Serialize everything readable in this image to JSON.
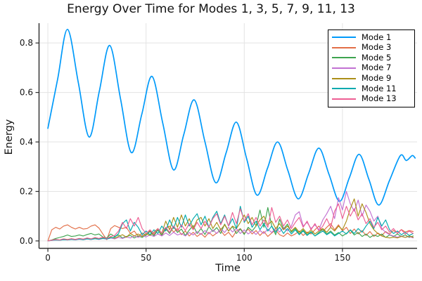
{
  "chart_data": {
    "type": "line",
    "title": "Energy Over Time for Modes 1, 3, 5, 7, 9, 11, 13",
    "xlabel": "Time",
    "ylabel": "Energy",
    "xlim": [
      -4.5,
      188
    ],
    "ylim": [
      -0.03,
      0.88
    ],
    "xticks": {
      "values": [
        0,
        50,
        100,
        150
      ],
      "labels": [
        "0",
        "50",
        "100",
        "150"
      ]
    },
    "yticks": {
      "values": [
        0.0,
        0.2,
        0.4,
        0.6,
        0.8
      ],
      "labels": [
        "0.0",
        "0.2",
        "0.4",
        "0.6",
        "0.8"
      ]
    },
    "grid": true,
    "legend_position": "top-right",
    "colors": {
      "grid": "#e3e3e3",
      "axis": "#2c2c2c",
      "text": "#131313",
      "legend_border": "#000000",
      "background": "#ffffff"
    },
    "series": [
      {
        "name": "Mode 1",
        "color": "#009AFA",
        "smooth": true,
        "width": 1.7,
        "points": [
          [
            0,
            0.455
          ],
          [
            5,
            0.655
          ],
          [
            10,
            0.855
          ],
          [
            15.5,
            0.64
          ],
          [
            21,
            0.42
          ],
          [
            26.2,
            0.605
          ],
          [
            31.5,
            0.79
          ],
          [
            37,
            0.574
          ],
          [
            42.5,
            0.357
          ],
          [
            47.8,
            0.511
          ],
          [
            53,
            0.665
          ],
          [
            58.5,
            0.476
          ],
          [
            64,
            0.287
          ],
          [
            69.2,
            0.43
          ],
          [
            74.5,
            0.57
          ],
          [
            80,
            0.4
          ],
          [
            85.5,
            0.235
          ],
          [
            90.8,
            0.357
          ],
          [
            96,
            0.48
          ],
          [
            101.2,
            0.333
          ],
          [
            106.5,
            0.185
          ],
          [
            111.8,
            0.293
          ],
          [
            117,
            0.4
          ],
          [
            122.2,
            0.285
          ],
          [
            127.5,
            0.17
          ],
          [
            132.8,
            0.273
          ],
          [
            138,
            0.375
          ],
          [
            143.2,
            0.268
          ],
          [
            148.5,
            0.16
          ],
          [
            153.5,
            0.255
          ],
          [
            158.5,
            0.35
          ],
          [
            163.5,
            0.248
          ],
          [
            168.5,
            0.145
          ],
          [
            174,
            0.245
          ],
          [
            179.5,
            0.345
          ],
          [
            182.5,
            0.325
          ],
          [
            185.5,
            0.345
          ],
          [
            187,
            0.335
          ]
        ]
      },
      {
        "name": "Mode 3",
        "color": "#E26E47",
        "smooth": false,
        "width": 1.15,
        "t_start": 0,
        "t_step": 2,
        "values": [
          0,
          0.045,
          0.055,
          0.048,
          0.06,
          0.065,
          0.055,
          0.048,
          0.055,
          0.048,
          0.05,
          0.06,
          0.065,
          0.052,
          0.028,
          0.005,
          0.05,
          0.062,
          0.055,
          0.05,
          0.055,
          0.03,
          0.04,
          0.018,
          0.032,
          0.022,
          0.042,
          0.025,
          0.045,
          0.02,
          0.05,
          0.06,
          0.035,
          0.05,
          0.025,
          0.04,
          0.02,
          0.035,
          0.018,
          0.03,
          0.015,
          0.035,
          0.02,
          0.032,
          0.042,
          0.022,
          0.035,
          0.015,
          0.04,
          0.05,
          0.03,
          0.048,
          0.028,
          0.042,
          0.022,
          0.038,
          0.018,
          0.032,
          0.045,
          0.025,
          0.018,
          0.032,
          0.02,
          0.028,
          0.04,
          0.022,
          0.036,
          0.028,
          0.045,
          0.06,
          0.038,
          0.055,
          0.07,
          0.045,
          0.065,
          0.04,
          0.055,
          0.03,
          0.048,
          0.028,
          0.042,
          0.022,
          0.038,
          0.018,
          0.032,
          0.022,
          0.038,
          0.028,
          0.042,
          0.032,
          0.046,
          0.036,
          0.042,
          0.038
        ]
      },
      {
        "name": "Mode 5",
        "color": "#3DA44E",
        "smooth": false,
        "width": 1.15,
        "t_start": 0,
        "t_step": 2,
        "values": [
          0,
          0.004,
          0.01,
          0.014,
          0.018,
          0.024,
          0.018,
          0.02,
          0.024,
          0.02,
          0.026,
          0.03,
          0.024,
          0.028,
          0.016,
          0.012,
          0.028,
          0.018,
          0.024,
          0.012,
          0.018,
          0.022,
          0.012,
          0.02,
          0.014,
          0.024,
          0.038,
          0.02,
          0.044,
          0.024,
          0.05,
          0.03,
          0.058,
          0.034,
          0.048,
          0.022,
          0.044,
          0.062,
          0.03,
          0.05,
          0.026,
          0.058,
          0.038,
          0.054,
          0.03,
          0.068,
          0.04,
          0.058,
          0.03,
          0.048,
          0.026,
          0.055,
          0.04,
          0.06,
          0.125,
          0.055,
          0.135,
          0.06,
          0.025,
          0.088,
          0.048,
          0.068,
          0.035,
          0.05,
          0.028,
          0.044,
          0.024,
          0.038,
          0.02,
          0.034,
          0.048,
          0.028,
          0.04,
          0.024,
          0.034,
          0.02,
          0.03,
          0.044,
          0.024,
          0.034,
          0.018,
          0.028,
          0.014,
          0.024,
          0.018,
          0.028,
          0.014,
          0.024,
          0.018,
          0.028,
          0.018,
          0.024,
          0.014,
          0.02
        ]
      },
      {
        "name": "Mode 7",
        "color": "#C271D2",
        "smooth": false,
        "width": 1.15,
        "t_start": 0,
        "t_step": 2,
        "values": [
          0,
          0.002,
          0.004,
          0.003,
          0.005,
          0.004,
          0.006,
          0.004,
          0.007,
          0.005,
          0.008,
          0.006,
          0.009,
          0.006,
          0.01,
          0.007,
          0.012,
          0.008,
          0.014,
          0.01,
          0.016,
          0.012,
          0.02,
          0.014,
          0.022,
          0.016,
          0.024,
          0.018,
          0.028,
          0.02,
          0.032,
          0.022,
          0.035,
          0.024,
          0.03,
          0.02,
          0.034,
          0.024,
          0.038,
          0.026,
          0.042,
          0.028,
          0.045,
          0.03,
          0.05,
          0.034,
          0.055,
          0.036,
          0.05,
          0.03,
          0.045,
          0.028,
          0.04,
          0.026,
          0.042,
          0.03,
          0.048,
          0.034,
          0.052,
          0.036,
          0.055,
          0.04,
          0.06,
          0.105,
          0.118,
          0.06,
          0.075,
          0.05,
          0.065,
          0.045,
          0.085,
          0.11,
          0.14,
          0.09,
          0.175,
          0.125,
          0.2,
          0.15,
          0.12,
          0.165,
          0.1,
          0.145,
          0.12,
          0.08,
          0.1,
          0.05,
          0.035,
          0.025,
          0.02,
          0.015,
          0.02,
          0.014,
          0.018,
          0.012
        ]
      },
      {
        "name": "Mode 9",
        "color": "#AC8E18",
        "smooth": false,
        "width": 1.15,
        "t_start": 0,
        "t_step": 2,
        "values": [
          0,
          0.003,
          0.006,
          0.004,
          0.008,
          0.006,
          0.009,
          0.006,
          0.01,
          0.007,
          0.011,
          0.008,
          0.012,
          0.009,
          0.013,
          0.01,
          0.015,
          0.011,
          0.018,
          0.025,
          0.015,
          0.03,
          0.02,
          0.028,
          0.018,
          0.03,
          0.022,
          0.035,
          0.05,
          0.03,
          0.08,
          0.045,
          0.095,
          0.055,
          0.105,
          0.06,
          0.09,
          0.05,
          0.085,
          0.095,
          0.06,
          0.09,
          0.05,
          0.075,
          0.045,
          0.065,
          0.04,
          0.06,
          0.05,
          0.075,
          0.105,
          0.07,
          0.095,
          0.06,
          0.085,
          0.1,
          0.065,
          0.08,
          0.05,
          0.07,
          0.045,
          0.06,
          0.04,
          0.055,
          0.035,
          0.05,
          0.03,
          0.045,
          0.028,
          0.04,
          0.05,
          0.035,
          0.055,
          0.04,
          0.06,
          0.045,
          0.08,
          0.13,
          0.17,
          0.1,
          0.15,
          0.115,
          0.07,
          0.045,
          0.03,
          0.02,
          0.015,
          0.012,
          0.015,
          0.012,
          0.018,
          0.014,
          0.02,
          0.015
        ]
      },
      {
        "name": "Mode 11",
        "color": "#00AAAE",
        "smooth": false,
        "width": 1.15,
        "t_start": 0,
        "t_step": 2,
        "values": [
          0,
          0.002,
          0.004,
          0.003,
          0.005,
          0.004,
          0.006,
          0.005,
          0.007,
          0.005,
          0.008,
          0.006,
          0.009,
          0.007,
          0.01,
          0.008,
          0.012,
          0.015,
          0.03,
          0.07,
          0.085,
          0.04,
          0.075,
          0.055,
          0.025,
          0.04,
          0.025,
          0.045,
          0.03,
          0.06,
          0.04,
          0.085,
          0.05,
          0.095,
          0.055,
          0.105,
          0.06,
          0.09,
          0.11,
          0.065,
          0.1,
          0.055,
          0.095,
          0.12,
          0.07,
          0.105,
          0.06,
          0.09,
          0.05,
          0.14,
          0.075,
          0.1,
          0.055,
          0.08,
          0.045,
          0.07,
          0.04,
          0.06,
          0.035,
          0.055,
          0.03,
          0.05,
          0.028,
          0.045,
          0.025,
          0.04,
          0.022,
          0.035,
          0.02,
          0.03,
          0.04,
          0.025,
          0.035,
          0.02,
          0.03,
          0.04,
          0.028,
          0.045,
          0.03,
          0.05,
          0.035,
          0.06,
          0.08,
          0.05,
          0.095,
          0.06,
          0.085,
          0.045,
          0.03,
          0.04,
          0.025,
          0.035,
          0.022,
          0.03
        ]
      },
      {
        "name": "Mode 13",
        "color": "#ED5E93",
        "smooth": false,
        "width": 1.15,
        "t_start": 0,
        "t_step": 2,
        "values": [
          0,
          0.003,
          0.006,
          0.004,
          0.008,
          0.005,
          0.009,
          0.006,
          0.01,
          0.007,
          0.012,
          0.008,
          0.014,
          0.01,
          0.015,
          0.01,
          0.018,
          0.022,
          0.04,
          0.075,
          0.05,
          0.09,
          0.06,
          0.095,
          0.05,
          0.03,
          0.045,
          0.028,
          0.05,
          0.032,
          0.055,
          0.035,
          0.06,
          0.04,
          0.065,
          0.042,
          0.07,
          0.045,
          0.075,
          0.05,
          0.08,
          0.055,
          0.09,
          0.11,
          0.065,
          0.1,
          0.06,
          0.115,
          0.07,
          0.13,
          0.08,
          0.11,
          0.065,
          0.095,
          0.06,
          0.085,
          0.055,
          0.135,
          0.075,
          0.1,
          0.06,
          0.085,
          0.05,
          0.075,
          0.095,
          0.055,
          0.08,
          0.045,
          0.07,
          0.04,
          0.06,
          0.09,
          0.055,
          0.12,
          0.15,
          0.09,
          0.14,
          0.1,
          0.13,
          0.085,
          0.11,
          0.07,
          0.09,
          0.055,
          0.075,
          0.045,
          0.06,
          0.035,
          0.05,
          0.03,
          0.045,
          0.028,
          0.04,
          0.03
        ]
      }
    ]
  }
}
